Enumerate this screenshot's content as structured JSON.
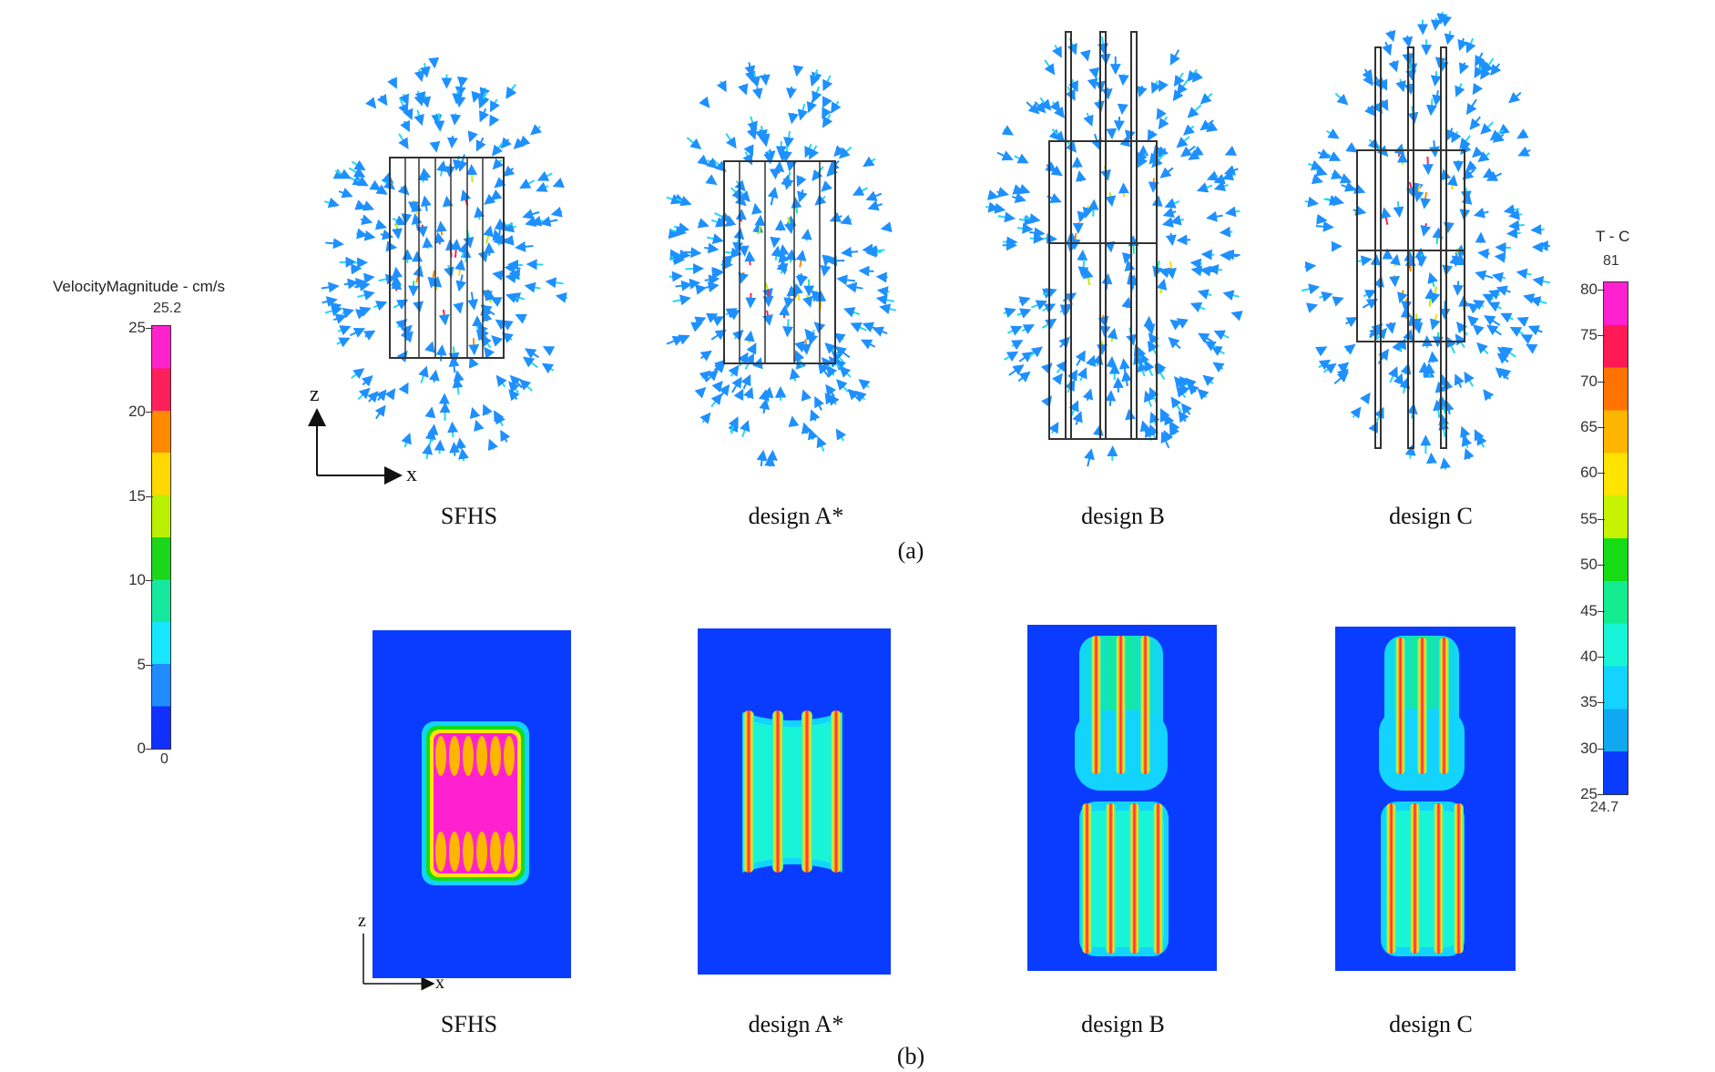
{
  "captions_a": [
    "SFHS",
    "design A*",
    "design B",
    "design C"
  ],
  "captions_b": [
    "SFHS",
    "design A*",
    "design B",
    "design C"
  ],
  "sublabel_a": "(a)",
  "sublabel_b": "(b)",
  "axis_a": {
    "vertical": "z",
    "horizontal": "x"
  },
  "axis_b": {
    "vertical": "z",
    "horizontal": "x"
  },
  "velocity_bar": {
    "title": "VelocityMagnitude - cm/s",
    "max_label": "25.2",
    "min_label": "0",
    "ticks": [
      "25",
      "20",
      "15",
      "10",
      "5",
      "0"
    ],
    "colors": [
      "#ff22cc",
      "#ff1f5a",
      "#ff8a00",
      "#ffd800",
      "#b8f000",
      "#1bd61b",
      "#16e8a0",
      "#17e6ff",
      "#1e8cff",
      "#1030ff"
    ]
  },
  "temperature_bar": {
    "title": "T - C",
    "max_label": "81",
    "min_label": "24.7",
    "ticks": [
      "80",
      "75",
      "70",
      "65",
      "60",
      "55",
      "50",
      "45",
      "40",
      "35",
      "30",
      "25"
    ],
    "colors": [
      "#ff21d0",
      "#ff1a55",
      "#ff7400",
      "#ffb600",
      "#ffe400",
      "#c6f300",
      "#16dc16",
      "#14ec90",
      "#18f4d8",
      "#12d4ff",
      "#10a8f0",
      "#0a3cff"
    ]
  },
  "colors": {
    "background_field": "#0a3cff",
    "hot": "#ff21d0",
    "arrow_blue": "#1e90ff",
    "arrow_cyan": "#22d8f0"
  }
}
